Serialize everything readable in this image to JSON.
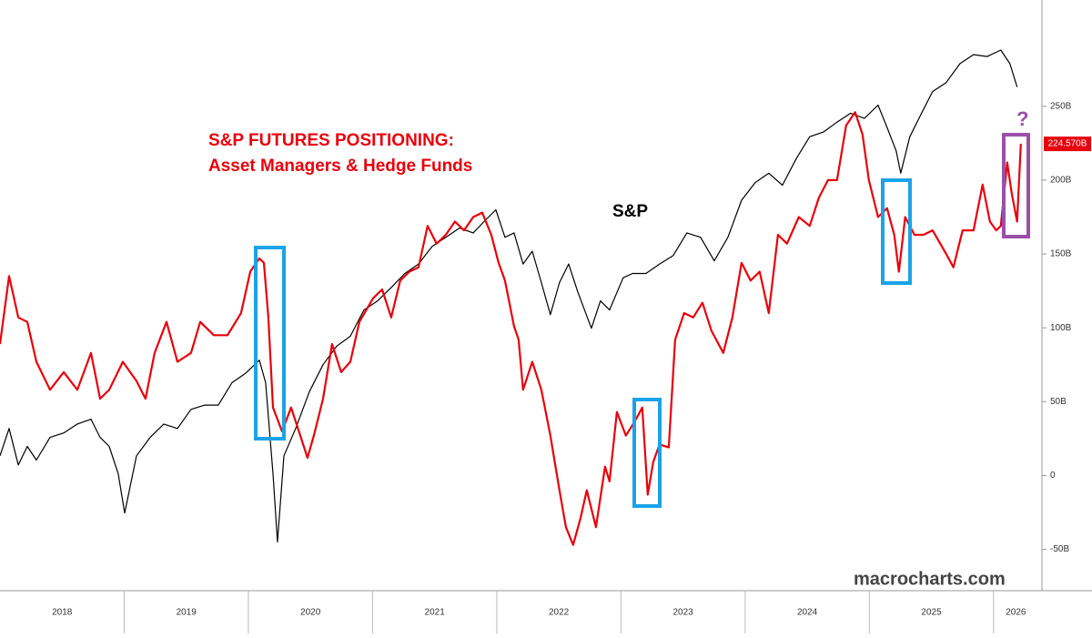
{
  "chart_data": {
    "type": "line",
    "title": "S&P FUTURES POSITIONING:",
    "subtitle": "Asset Managers & Hedge Funds",
    "annotations": [
      "S&P",
      "?"
    ],
    "source": "macrocharts.com",
    "xlim": [
      2018,
      2026.39
    ],
    "xticks": [
      {
        "value": 2018.5,
        "label": "2018"
      },
      {
        "value": 2019.5,
        "label": "2019"
      },
      {
        "value": 2020.5,
        "label": "2020"
      },
      {
        "value": 2021.5,
        "label": "2021"
      },
      {
        "value": 2022.5,
        "label": "2022"
      },
      {
        "value": 2023.5,
        "label": "2023"
      },
      {
        "value": 2024.5,
        "label": "2024"
      },
      {
        "value": 2025.5,
        "label": "2025"
      },
      {
        "value": 2026.18,
        "label": "2026"
      }
    ],
    "xgrid": [
      2019,
      2020,
      2021,
      2022,
      2023,
      2024,
      2025,
      2026
    ],
    "ylim": [
      -78,
      322
    ],
    "yticks": [
      {
        "value": 250,
        "label": "250B"
      },
      {
        "value": 200,
        "label": "200B"
      },
      {
        "value": 150,
        "label": "150B"
      },
      {
        "value": 100,
        "label": "100B"
      },
      {
        "value": 50,
        "label": "50B"
      },
      0,
      {
        "value": -50,
        "label": "-50B"
      }
    ],
    "y2lim": [
      2005,
      7700
    ],
    "y2log": true,
    "series": [
      {
        "color": "#e8000b",
        "last_label": "224.570B",
        "x": [
          2018,
          2018.073,
          2018.147,
          2018.22,
          2018.293,
          2018.403,
          2018.513,
          2018.623,
          2018.733,
          2018.806,
          2018.879,
          2018.989,
          2019.099,
          2019.172,
          2019.245,
          2019.341,
          2019.429,
          2019.538,
          2019.612,
          2019.722,
          2019.832,
          2019.941,
          2020.015,
          2020.088,
          2020.125,
          2020.161,
          2020.198,
          2020.271,
          2020.344,
          2020.418,
          2020.476,
          2020.527,
          2020.601,
          2020.674,
          2020.747,
          2020.821,
          2020.894,
          2021.004,
          2021.077,
          2021.15,
          2021.223,
          2021.297,
          2021.37,
          2021.443,
          2021.516,
          2021.59,
          2021.663,
          2021.736,
          2021.81,
          2021.883,
          2021.956,
          2022.015,
          2022.066,
          2022.139,
          2022.176,
          2022.212,
          2022.286,
          2022.359,
          2022.432,
          2022.505,
          2022.557,
          2022.615,
          2022.674,
          2022.725,
          2022.799,
          2022.872,
          2022.908,
          2022.967,
          2023.04,
          2023.114,
          2023.172,
          2023.216,
          2023.26,
          2023.311,
          2023.385,
          2023.436,
          2023.509,
          2023.582,
          2023.656,
          2023.729,
          2023.824,
          2023.897,
          2023.971,
          2024.044,
          2024.117,
          2024.19,
          2024.264,
          2024.337,
          2024.432,
          2024.52,
          2024.593,
          2024.667,
          2024.74,
          2024.813,
          2024.886,
          2024.945,
          2024.996,
          2025.07,
          2025.143,
          2025.201,
          2025.238,
          2025.289,
          2025.363,
          2025.436,
          2025.509,
          2025.619,
          2025.677,
          2025.751,
          2025.839,
          2025.912,
          2025.971,
          2026.022,
          2026.059,
          2026.11,
          2026.147,
          2026.19,
          2026.22
        ],
        "values": [
          89,
          135,
          107,
          104,
          77,
          58,
          70,
          58,
          83,
          52,
          58,
          77,
          64,
          52,
          83,
          104,
          77,
          83,
          104,
          95,
          95,
          110,
          138,
          147,
          144,
          107,
          46,
          30,
          46,
          27,
          12,
          27,
          52,
          89,
          70,
          77,
          104,
          120,
          126,
          107,
          132,
          138,
          141,
          169,
          157,
          163,
          172,
          166,
          175,
          178,
          163,
          144,
          132,
          101,
          92,
          58,
          77,
          58,
          27,
          -10,
          -35,
          -47,
          -29,
          -10,
          -35,
          6,
          -4,
          43,
          27,
          37,
          46,
          -13,
          9,
          21,
          19,
          92,
          110,
          107,
          117,
          98,
          83,
          107,
          144,
          132,
          138,
          110,
          163,
          157,
          175,
          169,
          188,
          200,
          200,
          237,
          246,
          231,
          200,
          175,
          181,
          163,
          138,
          175,
          163,
          163,
          166,
          150,
          141,
          166,
          166,
          197,
          172,
          166,
          169,
          212,
          191,
          172,
          224.57
        ]
      },
      {
        "color": "#000000",
        "axis": "y2",
        "x": [
          2018,
          2018.073,
          2018.147,
          2018.22,
          2018.293,
          2018.403,
          2018.513,
          2018.623,
          2018.733,
          2018.806,
          2018.879,
          2018.952,
          2019.004,
          2019.099,
          2019.209,
          2019.319,
          2019.429,
          2019.538,
          2019.648,
          2019.758,
          2019.868,
          2019.978,
          2020.088,
          2020.139,
          2020.198,
          2020.234,
          2020.286,
          2020.381,
          2020.491,
          2020.601,
          2020.711,
          2020.821,
          2020.93,
          2021.04,
          2021.15,
          2021.26,
          2021.37,
          2021.48,
          2021.59,
          2021.7,
          2021.81,
          2021.919,
          2021.993,
          2022.066,
          2022.139,
          2022.212,
          2022.286,
          2022.359,
          2022.432,
          2022.505,
          2022.579,
          2022.652,
          2022.762,
          2022.835,
          2022.908,
          2023.018,
          2023.092,
          2023.201,
          2023.311,
          2023.421,
          2023.531,
          2023.641,
          2023.751,
          2023.861,
          2023.971,
          2024.081,
          2024.19,
          2024.3,
          2024.41,
          2024.52,
          2024.63,
          2024.74,
          2024.85,
          2024.96,
          2025.07,
          2025.143,
          2025.216,
          2025.253,
          2025.326,
          2025.399,
          2025.509,
          2025.619,
          2025.729,
          2025.839,
          2025.949,
          2026.059,
          2026.132,
          2026.19
        ],
        "values": [
          2726,
          2901,
          2670,
          2785,
          2700,
          2843,
          2872,
          2931,
          2963,
          2843,
          2785,
          2617,
          2393,
          2726,
          2843,
          2931,
          2901,
          3030,
          3060,
          3060,
          3220,
          3290,
          3390,
          3220,
          2617,
          2240,
          2726,
          2901,
          3155,
          3355,
          3500,
          3580,
          3800,
          3880,
          4000,
          4130,
          4220,
          4393,
          4485,
          4580,
          4530,
          4677,
          4775,
          4485,
          4530,
          4220,
          4345,
          4045,
          3760,
          4045,
          4220,
          3960,
          3645,
          3880,
          3800,
          4090,
          4130,
          4130,
          4220,
          4303,
          4530,
          4485,
          4250,
          4485,
          4880,
          5080,
          5190,
          5050,
          5360,
          5640,
          5700,
          5830,
          5950,
          5880,
          6060,
          5760,
          5460,
          5190,
          5640,
          5880,
          6250,
          6380,
          6660,
          6800,
          6770,
          6870,
          6660,
          6315
        ]
      }
    ]
  }
}
